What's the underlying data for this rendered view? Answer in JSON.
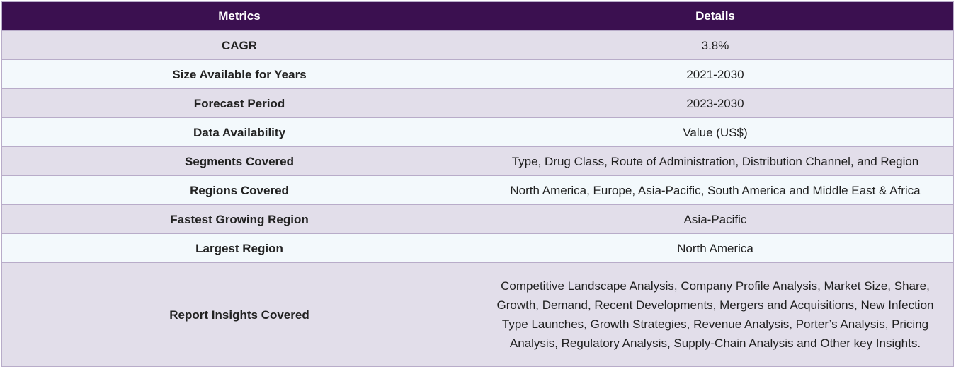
{
  "table": {
    "headers": {
      "metrics": "Metrics",
      "details": "Details"
    },
    "rows": [
      {
        "metric": "CAGR",
        "detail": "3.8%"
      },
      {
        "metric": "Size Available for Years",
        "detail": "2021-2030"
      },
      {
        "metric": "Forecast Period",
        "detail": "2023-2030"
      },
      {
        "metric": "Data Availability",
        "detail": "Value (US$)"
      },
      {
        "metric": "Segments Covered",
        "detail": "Type, Drug Class, Route of Administration, Distribution Channel, and Region"
      },
      {
        "metric": "Regions Covered",
        "detail": "North America, Europe, Asia-Pacific, South America and Middle East & Africa"
      },
      {
        "metric": "Fastest Growing Region",
        "detail": "Asia-Pacific"
      },
      {
        "metric": "Largest Region",
        "detail": "North America"
      },
      {
        "metric": "Report Insights Covered",
        "detail": "Competitive Landscape Analysis, Company Profile Analysis, Market Size, Share, Growth, Demand, Recent Developments, Mergers and Acquisitions, New Infection Type Launches, Growth Strategies, Revenue Analysis, Porter’s Analysis, Pricing Analysis, Regulatory Analysis, Supply-Chain Analysis and Other key Insights."
      }
    ]
  },
  "colors": {
    "header_bg": "#3b1050",
    "row_odd_bg": "#e2deea",
    "row_even_bg": "#f3f9fc",
    "border": "#b8acc9"
  }
}
